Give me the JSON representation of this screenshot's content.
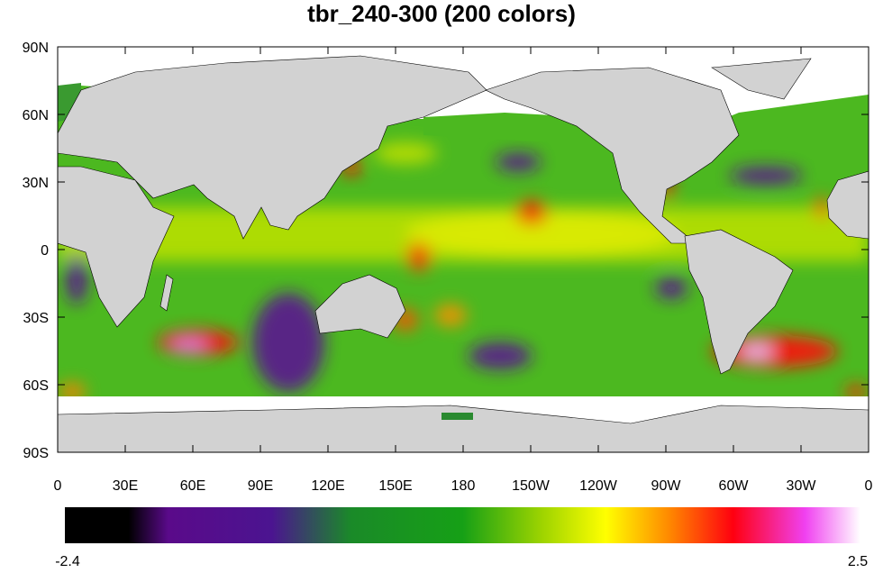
{
  "title": "tbr_240-300 (200 colors)",
  "map": {
    "xlim": [
      0,
      360
    ],
    "ylim": [
      -90,
      90
    ],
    "yticks": [
      {
        "value": 90,
        "label": "90N"
      },
      {
        "value": 60,
        "label": "60N"
      },
      {
        "value": 30,
        "label": "30N"
      },
      0,
      {
        "value": -30,
        "label": "30S"
      },
      {
        "value": -60,
        "label": "60S"
      },
      {
        "value": -90,
        "label": "90S"
      }
    ],
    "xticks": [
      0,
      {
        "value": 30,
        "label": "30E"
      },
      {
        "value": 60,
        "label": "60E"
      },
      {
        "value": 90,
        "label": "90E"
      },
      {
        "value": 120,
        "label": "120E"
      },
      {
        "value": 150,
        "label": "150E"
      },
      180,
      {
        "value": 210,
        "label": "150W"
      },
      {
        "value": 240,
        "label": "120W"
      },
      {
        "value": 270,
        "label": "90W"
      },
      {
        "value": 300,
        "label": "60W"
      },
      {
        "value": 330,
        "label": "30W"
      },
      {
        "value": 360,
        "label": "0"
      }
    ]
  },
  "colorbar": {
    "min": -2.4,
    "max": 2.5
  }
}
